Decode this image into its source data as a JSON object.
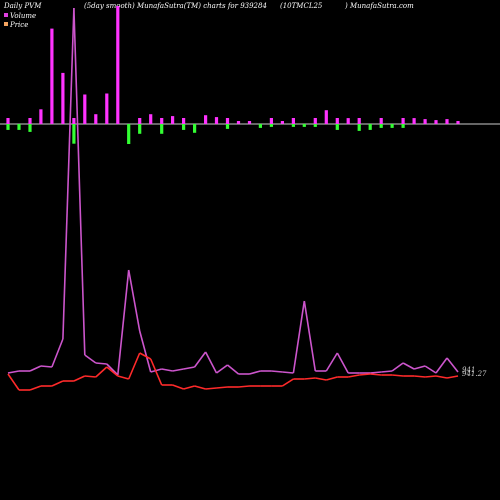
{
  "header": {
    "left": "Daily PVM",
    "mid": "(5day smooth) MunafaSutra(TM) charts for 939284",
    "code": "(10TMCL25",
    "site": ") MunafaSutra.com"
  },
  "legend": [
    {
      "label": "Volume",
      "color": "#e040e0"
    },
    {
      "label": "Price",
      "color": "#f4a460"
    }
  ],
  "price_labels": {
    "top": "941",
    "bottom": "941.27"
  },
  "colors": {
    "background": "#000000",
    "baseline": "#cccccc",
    "volume_line": "#cc55cc",
    "price_line": "#ff2a2a",
    "bar_up": "#ff33ff",
    "bar_down": "#33ff33"
  },
  "chart_data": {
    "type": "line",
    "title": "Daily PVM",
    "series": [
      {
        "name": "Volume",
        "values": [
          373,
          371,
          371,
          366,
          367,
          339,
          8,
          355,
          363,
          364,
          375,
          270,
          331,
          372,
          369,
          371,
          369,
          367,
          352,
          373,
          365,
          374,
          374,
          371,
          371,
          372,
          373,
          301,
          371,
          371,
          353,
          373,
          373,
          373,
          372,
          371,
          363,
          369,
          366,
          373,
          358,
          372
        ]
      },
      {
        "name": "Price",
        "values": [
          374,
          390,
          390,
          386,
          386,
          381,
          381,
          376,
          377,
          367,
          376,
          379,
          353,
          359,
          385,
          385,
          389,
          386,
          389,
          388,
          387,
          387,
          386,
          386,
          386,
          386,
          379,
          379,
          378,
          380,
          377,
          377,
          375,
          374,
          375,
          375,
          376,
          376,
          377,
          376,
          378,
          376
        ]
      }
    ],
    "bars": {
      "up": [
        0,
        0,
        0,
        0,
        0,
        0,
        0,
        0,
        0,
        0,
        0,
        0,
        0,
        0,
        0,
        0,
        0,
        0,
        0,
        0,
        0,
        0,
        0,
        0,
        0,
        0,
        0,
        0,
        0,
        0,
        0,
        0,
        0,
        0,
        0,
        0,
        0,
        0,
        0,
        0,
        0,
        0
      ],
      "values": [
        6,
        6,
        8,
        15,
        97,
        52,
        20,
        30,
        10,
        31,
        120,
        30,
        10,
        10,
        10,
        8,
        6,
        9,
        9,
        7,
        5,
        3,
        3,
        4,
        3,
        3,
        3,
        3,
        3,
        14,
        6,
        6,
        7,
        6,
        4,
        4,
        4,
        6,
        5,
        4,
        5,
        3
      ]
    },
    "bar_signs": [
      -1,
      -1,
      -1,
      1,
      1,
      1,
      -1,
      1,
      1,
      1,
      1,
      -1,
      -1,
      1,
      -1,
      1,
      -1,
      -1,
      1,
      1,
      -1,
      1,
      1,
      -1,
      -1,
      1,
      -1,
      -1,
      -1,
      1,
      -1,
      1,
      -1,
      -1,
      -1,
      -1,
      -1,
      1,
      1,
      1,
      1,
      1
    ],
    "ylim_bars": [
      -20,
      120
    ],
    "ylim_lines": [
      0,
      400
    ],
    "baseline": 0,
    "grid": false,
    "legend_position": "top-left"
  }
}
